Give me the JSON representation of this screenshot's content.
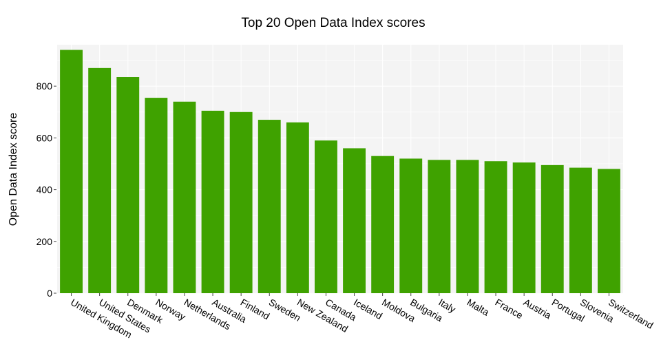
{
  "chart_data": {
    "type": "bar",
    "title": "Top 20 Open Data Index scores",
    "xlabel": "",
    "ylabel": "Open Data Index score",
    "ylim": [
      0,
      960
    ],
    "yticks": [
      0,
      200,
      400,
      600,
      800
    ],
    "ytick_labels": [
      "0",
      "200",
      "400",
      "600",
      "800"
    ],
    "grid": true,
    "legend": "none",
    "categories": [
      "United Kingdom",
      "United States",
      "Denmark",
      "Norway",
      "Netherlands",
      "Australia",
      "Finland",
      "Sweden",
      "New Zealand",
      "Canada",
      "Iceland",
      "Moldova",
      "Bulgaria",
      "Italy",
      "Malta",
      "France",
      "Austria",
      "Portugal",
      "Slovenia",
      "Switzerland"
    ],
    "values": [
      940,
      870,
      835,
      755,
      740,
      705,
      700,
      670,
      660,
      590,
      560,
      530,
      520,
      515,
      515,
      510,
      505,
      495,
      485,
      480
    ],
    "colors": {
      "bar": "#3fa200",
      "plot_background": "#f4f4f4",
      "grid": "#ffffff",
      "text": "#000000",
      "tick": "#444444"
    }
  }
}
